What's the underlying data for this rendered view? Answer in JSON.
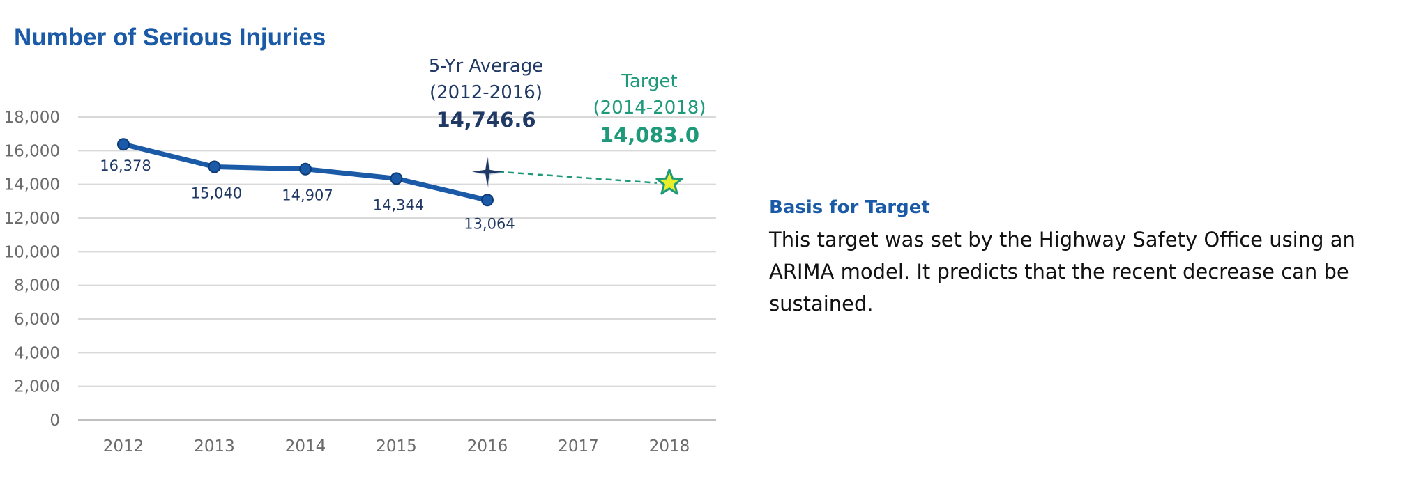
{
  "chart_data": {
    "type": "line",
    "title": "Number of Serious Injuries",
    "x": [
      "2012",
      "2013",
      "2014",
      "2015",
      "2016",
      "2017",
      "2018"
    ],
    "ylim": [
      0,
      18000
    ],
    "yticks": [
      0,
      2000,
      4000,
      6000,
      8000,
      10000,
      12000,
      14000,
      16000,
      18000
    ],
    "ytick_labels": [
      "0",
      "2,000",
      "4,000",
      "6,000",
      "8,000",
      "10,000",
      "12,000",
      "14,000",
      "16,000",
      "18,000"
    ],
    "grid": true,
    "series": [
      {
        "x": [
          "2012",
          "2013",
          "2014",
          "2015",
          "2016"
        ],
        "values": [
          16378,
          15040,
          14907,
          14344,
          13064
        ],
        "labels": [
          "16,378",
          "15,040",
          "14,907",
          "14,344",
          "13,064"
        ],
        "color": "#1a5aa6"
      }
    ],
    "average": {
      "x": "2016",
      "value": 14746.6,
      "line1": "5-Yr Average",
      "line2": "(2012-2016)",
      "value_label": "14,746.6",
      "color": "#1f3864"
    },
    "target": {
      "x": "2018",
      "value": 14083.0,
      "line1": "Target",
      "line2": "(2014-2018)",
      "value_label": "14,083.0",
      "color": "#1e9a7a"
    }
  },
  "basis": {
    "heading": "Basis for Target",
    "text": "This target was set by the Highway Safety Office using an ARIMA model.  It predicts that the recent decrease can be sustained."
  }
}
